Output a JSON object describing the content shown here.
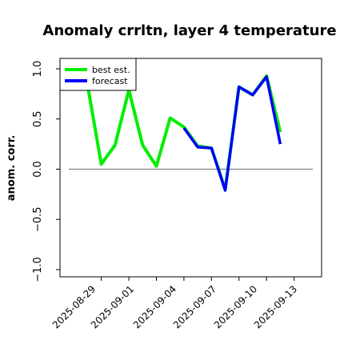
{
  "chart_data": {
    "type": "line",
    "title": "Anomaly crrltn, layer 4 temperature",
    "ylabel": "anom. corr.",
    "xlabel": "",
    "ylim": [
      -1.0,
      1.0
    ],
    "xlim": [
      "2025-08-26",
      "2025-09-14"
    ],
    "y_ticks": [
      1.0,
      0.5,
      0.0,
      -0.5,
      -1.0
    ],
    "y_tick_labels": [
      "1.0",
      "0.5",
      "0.0",
      "−0.5",
      "−1.0"
    ],
    "x_ticks": [
      "2025-08-29",
      "2025-08-31",
      "2025-09-02",
      "2025-09-04",
      "2025-09-06",
      "2025-09-08",
      "2025-09-10",
      "2025-09-12"
    ],
    "x_tick_labels": [
      "2025-08-29",
      "2025-09-01",
      "2025-09-04",
      "2025-09-07",
      "2025-09-10",
      "2025-09-13"
    ],
    "highlight_tick_label": "2025-09-04",
    "highlight_color": "#228b22",
    "zero_line": 0.0,
    "legend": {
      "placement": "top-left",
      "entries": [
        "best est.",
        "forecast"
      ]
    },
    "series": [
      {
        "name": "best est.",
        "color": "#00ee00",
        "x": [
          "2025-08-28",
          "2025-08-29",
          "2025-08-30",
          "2025-08-31",
          "2025-09-01",
          "2025-09-02",
          "2025-09-03",
          "2025-09-04",
          "2025-09-05",
          "2025-09-06",
          "2025-09-07",
          "2025-09-08",
          "2025-09-09",
          "2025-09-10",
          "2025-09-11"
        ],
        "values": [
          0.84,
          0.05,
          0.24,
          0.79,
          0.24,
          0.03,
          0.51,
          0.42,
          0.23,
          0.21,
          -0.2,
          0.82,
          0.74,
          0.93,
          0.37
        ]
      },
      {
        "name": "forecast",
        "color": "#0000ff",
        "x": [
          "2025-09-04",
          "2025-09-05",
          "2025-09-06",
          "2025-09-07",
          "2025-09-08",
          "2025-09-09",
          "2025-09-10",
          "2025-09-11"
        ],
        "values": [
          0.41,
          0.22,
          0.21,
          -0.21,
          0.82,
          0.74,
          0.92,
          0.25
        ]
      }
    ]
  }
}
